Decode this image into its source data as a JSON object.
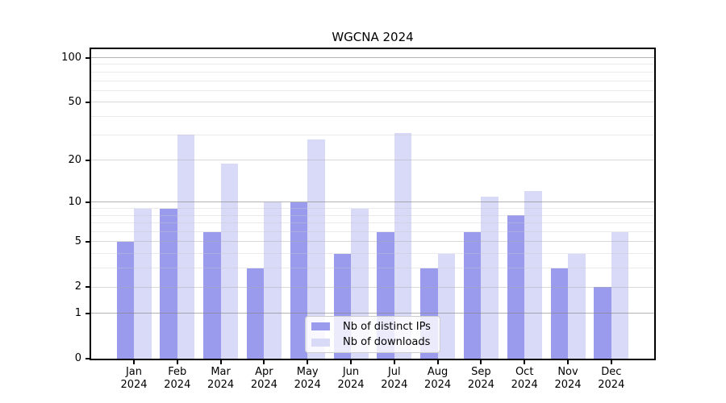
{
  "title": "WGCNA 2024",
  "chart_data": {
    "type": "bar",
    "title": "WGCNA 2024",
    "categories": [
      "Jan 2024",
      "Feb 2024",
      "Mar 2024",
      "Apr 2024",
      "May 2024",
      "Jun 2024",
      "Jul 2024",
      "Aug 2024",
      "Sep 2024",
      "Oct 2024",
      "Nov 2024",
      "Dec 2024"
    ],
    "series": [
      {
        "name": "Nb of distinct IPs",
        "color": "#9b9bee",
        "values": [
          5,
          9,
          6,
          3,
          10,
          4,
          6,
          3,
          6,
          8,
          3,
          2
        ]
      },
      {
        "name": "Nb of downloads",
        "color": "#d9d9f8",
        "values": [
          9,
          30,
          19,
          10,
          28,
          9,
          31,
          4,
          11,
          12,
          4,
          6
        ]
      }
    ],
    "xlabel": "",
    "ylabel": "",
    "yscale": "log1p",
    "ylim": [
      0,
      113
    ],
    "yticks": [
      0,
      1,
      2,
      5,
      10,
      20,
      50,
      100
    ],
    "minor_yticks": [
      3,
      4,
      6,
      7,
      8,
      9,
      30,
      40,
      60,
      70,
      80,
      90
    ],
    "grid": true,
    "legend_position": "lower center"
  }
}
